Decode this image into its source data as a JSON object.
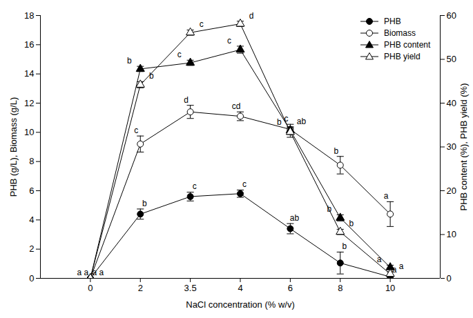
{
  "chart_data": {
    "type": "line",
    "x_label": "NaCl concentration (% w/v)",
    "y_label": "PHB (g/L), Biomass (g/L)",
    "y2_label": "PHB content (%), PHB yield (%)",
    "categories": [
      "0",
      "2",
      "3.5",
      "4",
      "6",
      "8",
      "10"
    ],
    "ylim": [
      0,
      18
    ],
    "yticks": [
      0,
      2,
      4,
      6,
      8,
      10,
      12,
      14,
      16,
      18
    ],
    "y2lim": [
      0,
      60
    ],
    "y2ticks": [
      0,
      10,
      20,
      30,
      40,
      50,
      60
    ],
    "legend": "upper right",
    "series": [
      {
        "name": "PHB",
        "color": "#000000",
        "marker": "filled_circle",
        "axis": "y",
        "values": [
          0,
          4.4,
          5.6,
          5.8,
          3.4,
          1.05,
          0.1
        ],
        "errors": [
          0,
          0.35,
          0.3,
          0.25,
          0.35,
          0.75,
          0.1
        ],
        "letters": [
          "a",
          "b",
          "c",
          "c",
          "ab",
          "b",
          "a"
        ]
      },
      {
        "name": "Biomass",
        "color": "#000000",
        "marker": "open_circle",
        "axis": "y",
        "values": [
          0,
          9.2,
          11.4,
          11.1,
          10.2,
          7.75,
          4.4
        ],
        "errors": [
          0,
          0.55,
          0.45,
          0.3,
          0.35,
          0.6,
          0.85
        ],
        "letters": [
          "a",
          "c",
          "d",
          "cd",
          "c",
          "b",
          "a"
        ]
      },
      {
        "name": "PHB content",
        "color": "#000000",
        "marker": "filled_triangle",
        "axis": "y2",
        "values": [
          0,
          47.8,
          49.2,
          52.2,
          33.8,
          13.8,
          2.5
        ],
        "errors": [
          0,
          0.6,
          0.6,
          0.8,
          0.6,
          0.7,
          0.5
        ],
        "letters": [
          "a",
          "b",
          "c",
          "c",
          "b",
          "b",
          "a"
        ]
      },
      {
        "name": "PHB yield",
        "color": "#000000",
        "marker": "open_triangle",
        "axis": "y2",
        "values": [
          0,
          44.2,
          56.1,
          58.1,
          33.4,
          10.6,
          1.0
        ],
        "errors": [
          0,
          0.7,
          0.6,
          0.6,
          1.2,
          0.6,
          0.5
        ],
        "letters": [
          "a",
          "b",
          "c",
          "d",
          "ab",
          "b",
          "a"
        ]
      }
    ]
  }
}
